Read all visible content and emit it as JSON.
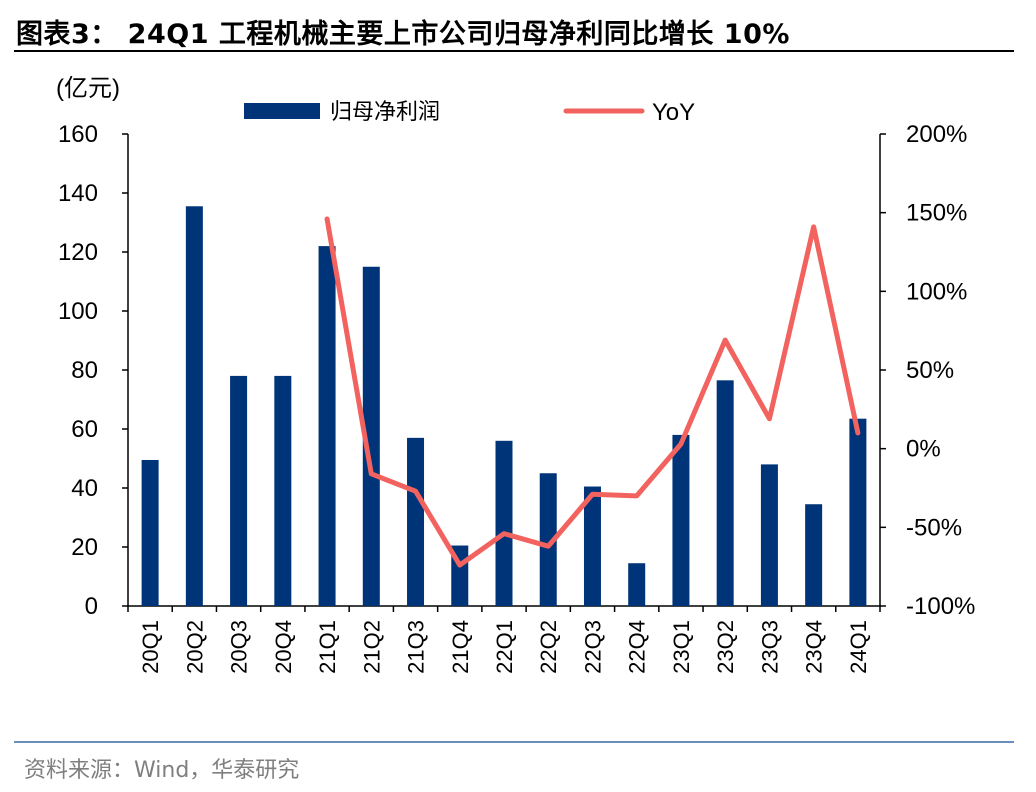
{
  "title": "图表3：  24Q1 工程机械主要上市公司归母净利同比增长 10%",
  "source": "资料来源：Wind，华泰研究",
  "colors": {
    "bar": "#003478",
    "line": "#f2625e",
    "source_rule": "#6a8fbd"
  },
  "chart_data": {
    "type": "bar+line",
    "unit_label": "(亿元)",
    "categories": [
      "20Q1",
      "20Q2",
      "20Q3",
      "20Q4",
      "21Q1",
      "21Q2",
      "21Q3",
      "21Q4",
      "22Q1",
      "22Q2",
      "22Q3",
      "22Q4",
      "23Q1",
      "23Q2",
      "23Q3",
      "23Q4",
      "24Q1"
    ],
    "series": [
      {
        "name": "归母净利润",
        "type": "bar",
        "axis": "left",
        "values": [
          49.5,
          135.5,
          78,
          78,
          122,
          115,
          57,
          20.5,
          56,
          45,
          40.5,
          14.5,
          58,
          76.5,
          48,
          34.5,
          63.5
        ]
      },
      {
        "name": "YoY",
        "type": "line",
        "axis": "right",
        "values": [
          null,
          null,
          null,
          null,
          146,
          -16,
          -27,
          -74,
          -54,
          -62,
          -29,
          -30,
          3,
          69,
          19,
          141,
          10
        ]
      }
    ],
    "y_left": {
      "min": 0,
      "max": 160,
      "ticks": [
        "0",
        "20",
        "40",
        "60",
        "80",
        "100",
        "120",
        "140",
        "160"
      ]
    },
    "y_right": {
      "min": -100,
      "max": 200,
      "ticks": [
        "-100%",
        "-50%",
        "0%",
        "50%",
        "100%",
        "150%",
        "200%"
      ]
    },
    "legend_position": "top",
    "grid": false
  }
}
